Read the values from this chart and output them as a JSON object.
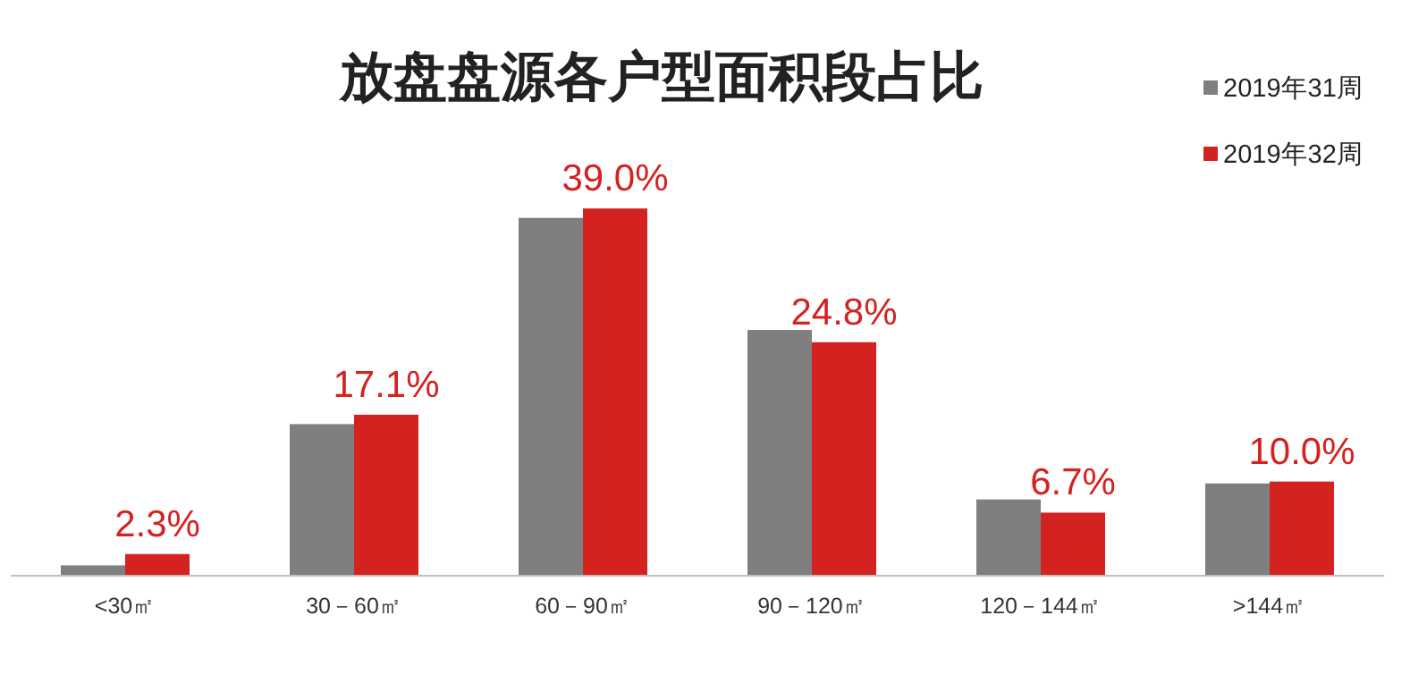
{
  "chart_data": {
    "type": "bar",
    "title": "放盘盘源各户型面积段占比",
    "categories": [
      "<30㎡",
      "30－60㎡",
      "60－90㎡",
      "90－120㎡",
      "120－144㎡",
      ">144㎡"
    ],
    "series": [
      {
        "name": "2019年31周",
        "color": "#7f7f7f",
        "values": [
          1.1,
          16.1,
          38.0,
          26.1,
          8.1,
          9.8
        ]
      },
      {
        "name": "2019年32周",
        "color": "#d42221",
        "values": [
          2.3,
          17.1,
          39.0,
          24.8,
          6.7,
          10.0
        ],
        "value_labels": [
          "2.3%",
          "17.1%",
          "39.0%",
          "24.8%",
          "6.7%",
          "10.0%"
        ]
      }
    ],
    "ylim": [
      0,
      45
    ],
    "legend": "top right"
  }
}
